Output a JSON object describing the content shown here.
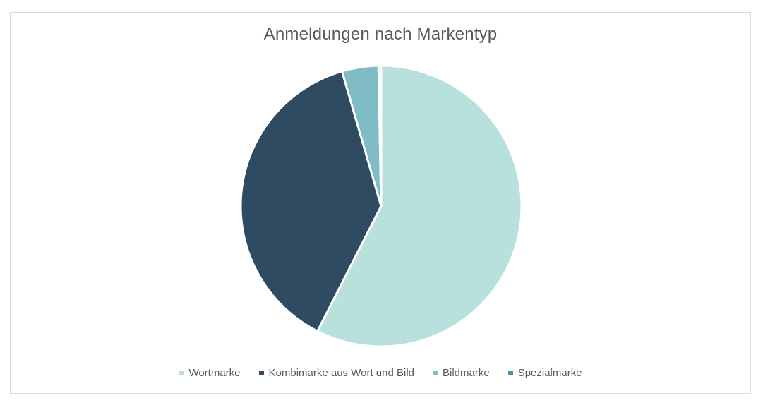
{
  "chart_data": {
    "type": "pie",
    "title": "Anmeldungen nach Markentyp",
    "legend_position": "bottom",
    "start_angle_deg": 0,
    "direction": "clockwise",
    "slices": [
      {
        "label": "Wortmarke",
        "value": 57.5,
        "color": "#b8e0dd"
      },
      {
        "label": "Kombimarke aus Wort und Bild",
        "value": 38.0,
        "color": "#2e4b62"
      },
      {
        "label": "Bildmarke",
        "value": 4.2,
        "color": "#7fbcc6"
      },
      {
        "label": "Spezialmarke",
        "value": 0.3,
        "color": "#3e9a9c"
      }
    ]
  }
}
